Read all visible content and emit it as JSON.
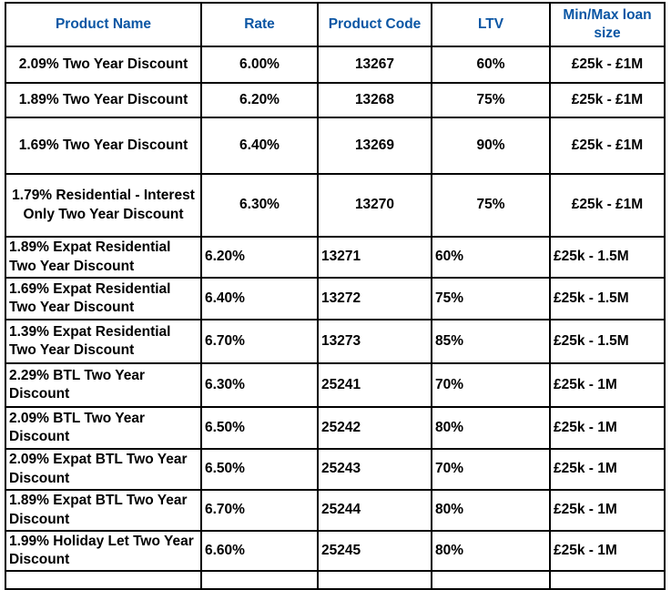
{
  "table": {
    "columns": [
      "Product Name",
      "Rate",
      "Product Code",
      "LTV",
      "Min/Max loan size"
    ],
    "rows": [
      {
        "product_name": "2.09% Two Year Discount",
        "rate": "6.00%",
        "product_code": "13267",
        "ltv": "60%",
        "loan_size": "£25k - £1M"
      },
      {
        "product_name": "1.89% Two Year Discount",
        "rate": "6.20%",
        "product_code": "13268",
        "ltv": "75%",
        "loan_size": "£25k - £1M"
      },
      {
        "product_name": "1.69% Two Year Discount",
        "rate": "6.40%",
        "product_code": "13269",
        "ltv": "90%",
        "loan_size": "£25k - £1M"
      },
      {
        "product_name": "1.79% Residential - Interest Only Two Year Discount",
        "rate": "6.30%",
        "product_code": "13270",
        "ltv": "75%",
        "loan_size": "£25k - £1M"
      },
      {
        "product_name": "1.89% Expat Residential Two Year Discount",
        "rate": "6.20%",
        "product_code": "13271",
        "ltv": "60%",
        "loan_size": "£25k - 1.5M"
      },
      {
        "product_name": "1.69% Expat Residential Two Year Discount",
        "rate": "6.40%",
        "product_code": "13272",
        "ltv": "75%",
        "loan_size": "£25k - 1.5M"
      },
      {
        "product_name": "1.39% Expat Residential Two Year Discount",
        "rate": "6.70%",
        "product_code": "13273",
        "ltv": "85%",
        "loan_size": "£25k - 1.5M"
      },
      {
        "product_name": "2.29% BTL Two Year Discount",
        "rate": "6.30%",
        "product_code": "25241",
        "ltv": "70%",
        "loan_size": "£25k - 1M"
      },
      {
        "product_name": "2.09% BTL Two Year Discount",
        "rate": "6.50%",
        "product_code": "25242",
        "ltv": "80%",
        "loan_size": "£25k - 1M"
      },
      {
        "product_name": "2.09% Expat BTL Two Year Discount",
        "rate": "6.50%",
        "product_code": "25243",
        "ltv": "70%",
        "loan_size": "£25k - 1M"
      },
      {
        "product_name": "1.89% Expat BTL Two Year Discount",
        "rate": "6.70%",
        "product_code": "25244",
        "ltv": "80%",
        "loan_size": "£25k - 1M"
      },
      {
        "product_name": "1.99% Holiday Let Two Year Discount",
        "rate": "6.60%",
        "product_code": "25245",
        "ltv": "80%",
        "loan_size": "£25k - 1M"
      }
    ]
  },
  "colors": {
    "header_text": "#0B56A4",
    "body_text": "#000000",
    "border": "#000000",
    "background": "#FFFFFF"
  }
}
